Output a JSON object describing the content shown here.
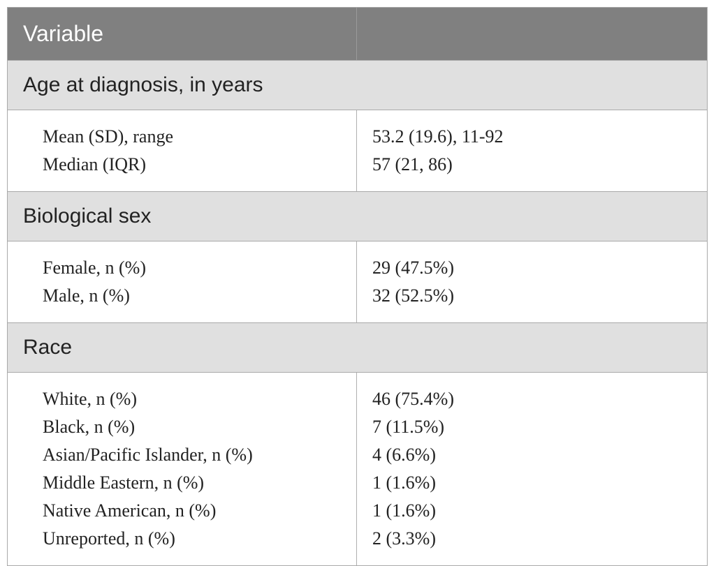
{
  "header": {
    "col1": "Variable",
    "col2": ""
  },
  "sections": [
    {
      "title": "Age at diagnosis, in years",
      "rows": [
        {
          "label": "Mean (SD), range",
          "value": "53.2 (19.6), 11-92"
        },
        {
          "label": "Median (IQR)",
          "value": "57 (21, 86)"
        }
      ]
    },
    {
      "title": "Biological sex",
      "rows": [
        {
          "label": "Female, n (%)",
          "value": "29 (47.5%)"
        },
        {
          "label": "Male, n (%)",
          "value": "32 (52.5%)"
        }
      ]
    },
    {
      "title": "Race",
      "rows": [
        {
          "label": "White, n (%)",
          "value": "46 (75.4%)"
        },
        {
          "label": "Black, n (%)",
          "value": "7 (11.5%)"
        },
        {
          "label": "Asian/Pacific Islander, n (%)",
          "value": "4 (6.6%)"
        },
        {
          "label": "Middle Eastern, n (%)",
          "value": "1 (1.6%)"
        },
        {
          "label": "Native American, n (%)",
          "value": "1 (1.6%)"
        },
        {
          "label": "Unreported, n (%)",
          "value": "2 (3.3%)"
        }
      ]
    }
  ]
}
